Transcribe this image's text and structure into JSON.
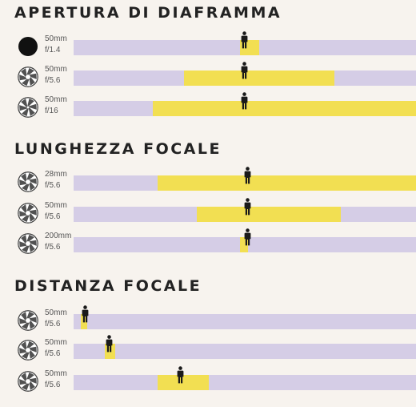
{
  "sections": [
    {
      "title": "APERTURA DI DIAFRAMMA",
      "rows": [
        {
          "focal": "50mm",
          "aperture": "f/1.4",
          "icon": "aperture-wide-open-icon",
          "dof_start": 0.486,
          "dof_end": 0.542,
          "subject": 0.498
        },
        {
          "focal": "50mm",
          "aperture": "f/5.6",
          "icon": "aperture-medium-icon",
          "dof_start": 0.322,
          "dof_end": 0.762,
          "subject": 0.498
        },
        {
          "focal": "50mm",
          "aperture": "f/16",
          "icon": "aperture-small-icon",
          "dof_start": 0.231,
          "dof_end": 1.0,
          "subject": 0.498
        }
      ]
    },
    {
      "title": "LUNGHEZZA FOCALE",
      "rows": [
        {
          "focal": "28mm",
          "aperture": "f/5.6",
          "icon": "aperture-medium-icon",
          "dof_start": 0.245,
          "dof_end": 1.0,
          "subject": 0.509
        },
        {
          "focal": "50mm",
          "aperture": "f/5.6",
          "icon": "aperture-medium-icon",
          "dof_start": 0.36,
          "dof_end": 0.78,
          "subject": 0.509
        },
        {
          "focal": "200mm",
          "aperture": "f/5.6",
          "icon": "aperture-medium-icon",
          "dof_start": 0.486,
          "dof_end": 0.509,
          "subject": 0.509
        }
      ]
    },
    {
      "title": "DISTANZA FOCALE",
      "rows": [
        {
          "focal": "50mm",
          "aperture": "f/5.6",
          "icon": "aperture-medium-icon",
          "dof_start": 0.021,
          "dof_end": 0.04,
          "subject": 0.033
        },
        {
          "focal": "50mm",
          "aperture": "f/5.6",
          "icon": "aperture-medium-icon",
          "dof_start": 0.091,
          "dof_end": 0.121,
          "subject": 0.105
        },
        {
          "focal": "50mm",
          "aperture": "f/5.6",
          "icon": "aperture-medium-icon",
          "dof_start": 0.245,
          "dof_end": 0.395,
          "subject": 0.313
        }
      ]
    }
  ],
  "colors": {
    "bar": "#d5cde6",
    "depth_of_field": "#f2df52",
    "figure": "#1a1a1a",
    "background": "#f7f3ee"
  }
}
